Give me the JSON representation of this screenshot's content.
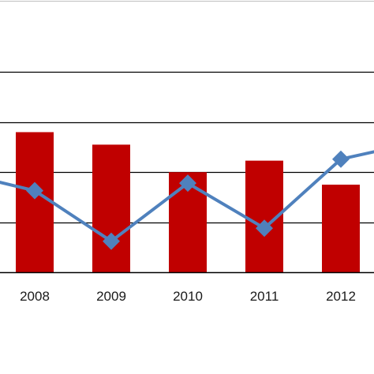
{
  "chart_data": {
    "type": "bar",
    "categories": [
      "2008",
      "2009",
      "2010",
      "2011",
      "2012"
    ],
    "ylim": [
      0,
      5
    ],
    "grid": true,
    "series": [
      {
        "kind": "bar",
        "color": "#c00000",
        "values": [
          2.8,
          2.55,
          2.0,
          2.23,
          1.75
        ]
      },
      {
        "kind": "line",
        "color": "#4f81bd",
        "marker": "diamond",
        "values": [
          1.63,
          0.62,
          1.78,
          0.88,
          2.26
        ],
        "clipped_edge_values": {
          "left": 2.0,
          "right": 2.6
        }
      }
    ],
    "title": "",
    "xlabel": "",
    "ylabel": ""
  }
}
